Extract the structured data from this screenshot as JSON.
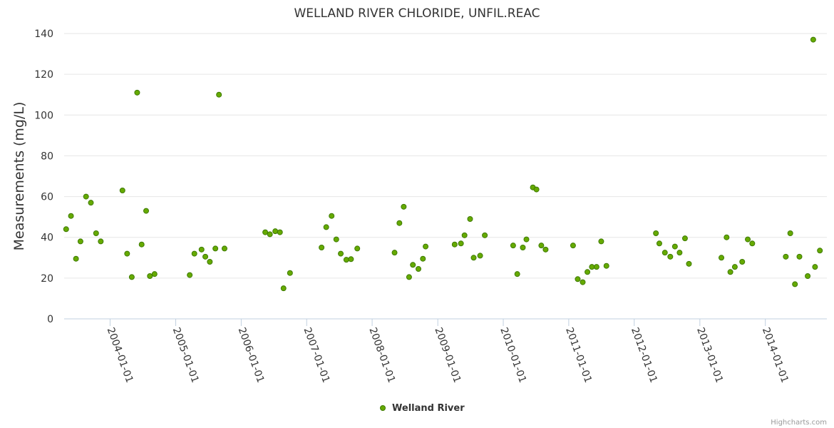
{
  "colors": {
    "marker_fill": "#66aa00",
    "marker_stroke": "#3d7a00",
    "grid": "#e6e6e6",
    "axis": "#c0d0e0"
  },
  "credits": "Highcharts.com",
  "chart_data": {
    "type": "scatter",
    "title": "WELLAND RIVER CHLORIDE, UNFIL.REAC",
    "xlabel": "",
    "ylabel": "Measurements (mg/L)",
    "ylim": [
      0,
      140
    ],
    "yticks": [
      0,
      20,
      40,
      60,
      80,
      100,
      120,
      140
    ],
    "xlim": [
      "2003-04-20",
      "2014-12-10"
    ],
    "xticks": [
      "2004-01-01",
      "2005-01-01",
      "2006-01-01",
      "2007-01-01",
      "2008-01-01",
      "2009-01-01",
      "2010-01-01",
      "2011-01-01",
      "2012-01-01",
      "2013-01-01",
      "2014-01-01"
    ],
    "grid": true,
    "legend": "bottom-center",
    "series": [
      {
        "name": "Welland River",
        "points": [
          {
            "x": "2003-05-01",
            "y": 44
          },
          {
            "x": "2003-05-28",
            "y": 50.5
          },
          {
            "x": "2003-06-25",
            "y": 29.5
          },
          {
            "x": "2003-07-20",
            "y": 38
          },
          {
            "x": "2003-08-20",
            "y": 60
          },
          {
            "x": "2003-09-16",
            "y": 57
          },
          {
            "x": "2003-10-15",
            "y": 42
          },
          {
            "x": "2003-11-10",
            "y": 38
          },
          {
            "x": "2004-03-10",
            "y": 63
          },
          {
            "x": "2004-04-05",
            "y": 32
          },
          {
            "x": "2004-05-01",
            "y": 20.5
          },
          {
            "x": "2004-05-31",
            "y": 111
          },
          {
            "x": "2004-06-25",
            "y": 36.5
          },
          {
            "x": "2004-07-20",
            "y": 53
          },
          {
            "x": "2004-08-10",
            "y": 21
          },
          {
            "x": "2004-09-05",
            "y": 22
          },
          {
            "x": "2005-03-20",
            "y": 21.5
          },
          {
            "x": "2005-04-15",
            "y": 32
          },
          {
            "x": "2005-05-25",
            "y": 34
          },
          {
            "x": "2005-06-15",
            "y": 30.5
          },
          {
            "x": "2005-07-10",
            "y": 28
          },
          {
            "x": "2005-08-10",
            "y": 34.5
          },
          {
            "x": "2005-08-30",
            "y": 110
          },
          {
            "x": "2005-09-30",
            "y": 34.5
          },
          {
            "x": "2006-05-15",
            "y": 42.5
          },
          {
            "x": "2006-06-10",
            "y": 41.5
          },
          {
            "x": "2006-07-10",
            "y": 43
          },
          {
            "x": "2006-08-05",
            "y": 42.5
          },
          {
            "x": "2006-08-25",
            "y": 15
          },
          {
            "x": "2006-09-30",
            "y": 22.5
          },
          {
            "x": "2007-03-25",
            "y": 35
          },
          {
            "x": "2007-04-20",
            "y": 45
          },
          {
            "x": "2007-05-20",
            "y": 50.5
          },
          {
            "x": "2007-06-15",
            "y": 39
          },
          {
            "x": "2007-07-10",
            "y": 32
          },
          {
            "x": "2007-08-10",
            "y": 29
          },
          {
            "x": "2007-09-05",
            "y": 29.3
          },
          {
            "x": "2007-10-10",
            "y": 34.5
          },
          {
            "x": "2008-05-05",
            "y": 32.5
          },
          {
            "x": "2008-06-01",
            "y": 47
          },
          {
            "x": "2008-06-25",
            "y": 55
          },
          {
            "x": "2008-07-25",
            "y": 20.5
          },
          {
            "x": "2008-08-15",
            "y": 26.5
          },
          {
            "x": "2008-09-15",
            "y": 24.5
          },
          {
            "x": "2008-10-10",
            "y": 29.5
          },
          {
            "x": "2008-10-25",
            "y": 35.5
          },
          {
            "x": "2009-04-05",
            "y": 36.5
          },
          {
            "x": "2009-05-10",
            "y": 37
          },
          {
            "x": "2009-05-30",
            "y": 41
          },
          {
            "x": "2009-06-30",
            "y": 49
          },
          {
            "x": "2009-07-20",
            "y": 30
          },
          {
            "x": "2009-08-25",
            "y": 31
          },
          {
            "x": "2009-09-20",
            "y": 41
          },
          {
            "x": "2010-02-25",
            "y": 36
          },
          {
            "x": "2010-03-20",
            "y": 22
          },
          {
            "x": "2010-04-20",
            "y": 35
          },
          {
            "x": "2010-05-10",
            "y": 39
          },
          {
            "x": "2010-06-15",
            "y": 64.5
          },
          {
            "x": "2010-07-05",
            "y": 63.5
          },
          {
            "x": "2010-08-01",
            "y": 36
          },
          {
            "x": "2010-08-25",
            "y": 34
          },
          {
            "x": "2011-01-25",
            "y": 36
          },
          {
            "x": "2011-02-20",
            "y": 19.5
          },
          {
            "x": "2011-03-20",
            "y": 18
          },
          {
            "x": "2011-04-15",
            "y": 23
          },
          {
            "x": "2011-05-10",
            "y": 25.5
          },
          {
            "x": "2011-06-05",
            "y": 25.5
          },
          {
            "x": "2011-07-01",
            "y": 38
          },
          {
            "x": "2011-07-30",
            "y": 26
          },
          {
            "x": "2012-05-01",
            "y": 42
          },
          {
            "x": "2012-05-20",
            "y": 37
          },
          {
            "x": "2012-06-20",
            "y": 32.5
          },
          {
            "x": "2012-07-20",
            "y": 30.5
          },
          {
            "x": "2012-08-15",
            "y": 35.5
          },
          {
            "x": "2012-09-10",
            "y": 32.5
          },
          {
            "x": "2012-10-10",
            "y": 39.5
          },
          {
            "x": "2012-11-01",
            "y": 27
          },
          {
            "x": "2013-05-01",
            "y": 30
          },
          {
            "x": "2013-05-30",
            "y": 40
          },
          {
            "x": "2013-06-20",
            "y": 23
          },
          {
            "x": "2013-07-15",
            "y": 25.5
          },
          {
            "x": "2013-08-25",
            "y": 28
          },
          {
            "x": "2013-09-25",
            "y": 39
          },
          {
            "x": "2013-10-20",
            "y": 37
          },
          {
            "x": "2014-04-25",
            "y": 30.5
          },
          {
            "x": "2014-05-20",
            "y": 42
          },
          {
            "x": "2014-06-15",
            "y": 17
          },
          {
            "x": "2014-07-10",
            "y": 30.5
          },
          {
            "x": "2014-08-25",
            "y": 21
          },
          {
            "x": "2014-09-25",
            "y": 137
          },
          {
            "x": "2014-10-05",
            "y": 25.5
          },
          {
            "x": "2014-11-01",
            "y": 33.5
          }
        ]
      }
    ]
  }
}
